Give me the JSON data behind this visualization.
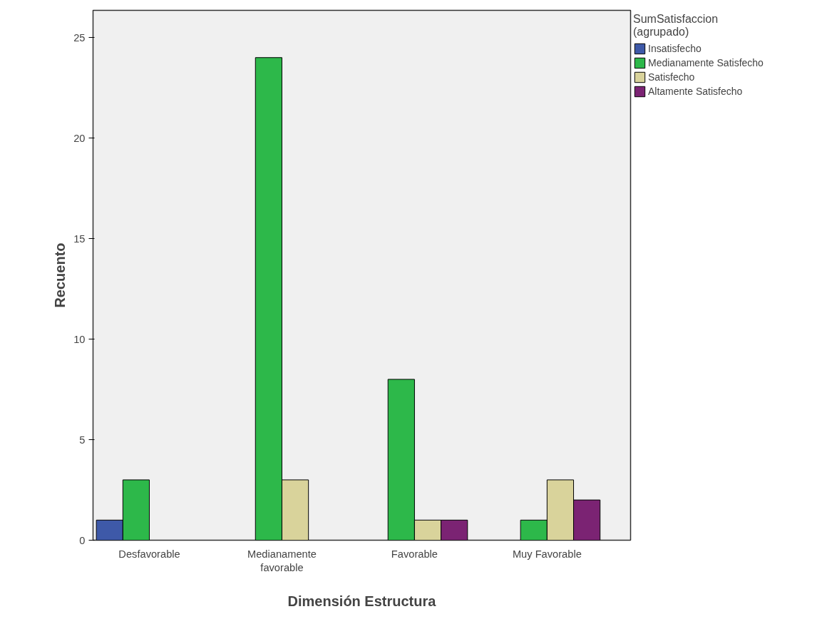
{
  "chart_data": {
    "type": "bar",
    "xlabel": "Dimensión Estructura",
    "ylabel": "Recuento",
    "legend_title": "SumSatisfaccion\n(agrupado)",
    "categories": [
      "Desfavorable",
      "Medianamente favorable",
      "Favorable",
      "Muy Favorable"
    ],
    "series": [
      {
        "name": "Insatisfecho",
        "color": "#3e59a8",
        "values": [
          1,
          null,
          null,
          null
        ]
      },
      {
        "name": "Medianamente Satisfecho",
        "color": "#2db84a",
        "values": [
          3,
          24,
          8,
          1
        ]
      },
      {
        "name": "Satisfecho",
        "color": "#d9d39b",
        "values": [
          null,
          3,
          1,
          3
        ]
      },
      {
        "name": "Altamente Satisfecho",
        "color": "#7b2373",
        "values": [
          null,
          null,
          1,
          2
        ]
      }
    ],
    "ylim": [
      0,
      26.35
    ],
    "yticks": [
      0,
      5,
      10,
      15,
      20,
      25
    ],
    "grid": false,
    "legend": "top right"
  }
}
